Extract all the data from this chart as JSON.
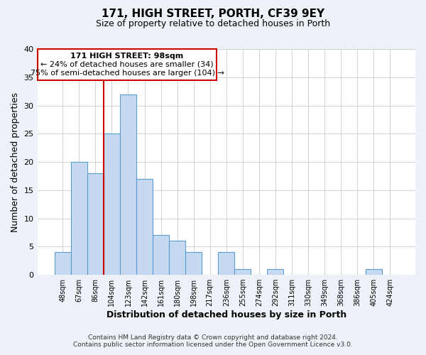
{
  "title": "171, HIGH STREET, PORTH, CF39 9EY",
  "subtitle": "Size of property relative to detached houses in Porth",
  "xlabel": "Distribution of detached houses by size in Porth",
  "ylabel": "Number of detached properties",
  "bar_labels": [
    "48sqm",
    "67sqm",
    "86sqm",
    "104sqm",
    "123sqm",
    "142sqm",
    "161sqm",
    "180sqm",
    "198sqm",
    "217sqm",
    "236sqm",
    "255sqm",
    "274sqm",
    "292sqm",
    "311sqm",
    "330sqm",
    "349sqm",
    "368sqm",
    "386sqm",
    "405sqm",
    "424sqm"
  ],
  "bar_values": [
    4,
    20,
    18,
    25,
    32,
    17,
    7,
    6,
    4,
    0,
    4,
    1,
    0,
    1,
    0,
    0,
    0,
    0,
    0,
    1,
    0
  ],
  "bar_color": "#c6d9f0",
  "bar_edge_color": "#5b9bd5",
  "ylim": [
    0,
    40
  ],
  "yticks": [
    0,
    5,
    10,
    15,
    20,
    25,
    30,
    35,
    40
  ],
  "vline_color": "#cc0000",
  "annotation_title": "171 HIGH STREET: 98sqm",
  "annotation_line1": "← 24% of detached houses are smaller (34)",
  "annotation_line2": "75% of semi-detached houses are larger (104) →",
  "footer1": "Contains HM Land Registry data © Crown copyright and database right 2024.",
  "footer2": "Contains public sector information licensed under the Open Government Licence v3.0.",
  "background_color": "#eef2f8",
  "plot_background": "#ffffff"
}
